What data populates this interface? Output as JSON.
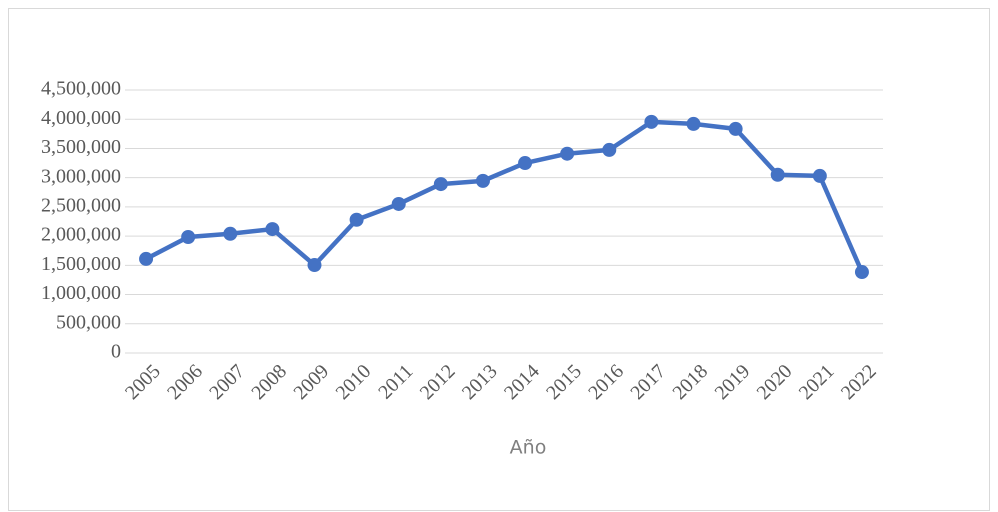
{
  "chart_data": {
    "type": "line",
    "x_label": "Año",
    "categories": [
      "2005",
      "2006",
      "2007",
      "2008",
      "2009",
      "2010",
      "2011",
      "2012",
      "2013",
      "2014",
      "2015",
      "2016",
      "2017",
      "2018",
      "2019",
      "2020",
      "2021",
      "2022"
    ],
    "series": [
      {
        "name": null,
        "color": "#4472c4",
        "values": [
          1610000,
          1985000,
          2040000,
          2120000,
          1505000,
          2280000,
          2550000,
          2890000,
          2945000,
          3250000,
          3410000,
          3475000,
          3955000,
          3920000,
          3835000,
          3050000,
          3030000,
          1385000
        ]
      }
    ],
    "ylim": [
      0,
      4500000
    ],
    "yticks": [
      0,
      {
        "value": 500000,
        "label": "500,000"
      },
      {
        "value": 1000000,
        "label": "1,000,000"
      },
      {
        "value": 1500000,
        "label": "1,500,000"
      },
      {
        "value": 2000000,
        "label": "2,000,000"
      },
      {
        "value": 2500000,
        "label": "2,500,000"
      },
      {
        "value": 3000000,
        "label": "3,000,000"
      },
      {
        "value": 3500000,
        "label": "3,500,000"
      },
      {
        "value": 4000000,
        "label": "4,000,000"
      },
      {
        "value": 4500000,
        "label": "4,500,000"
      }
    ],
    "grid": true
  }
}
